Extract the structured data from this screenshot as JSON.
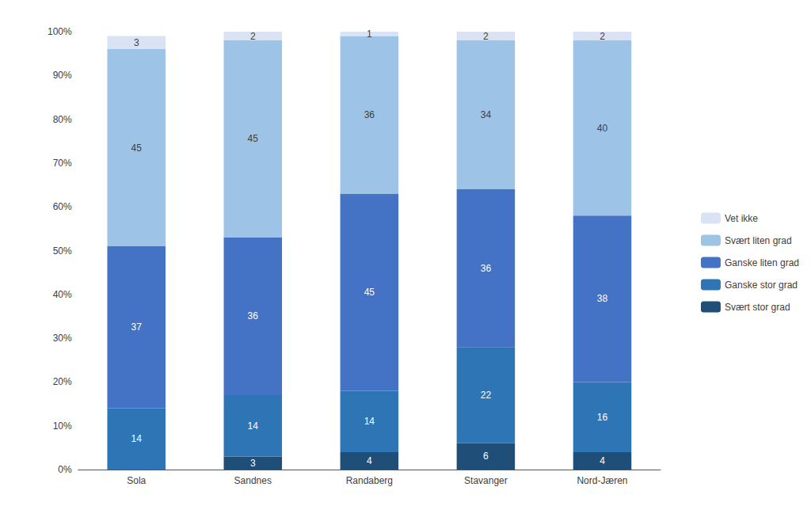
{
  "chart_data": {
    "type": "bar",
    "stacked": true,
    "data_labels": true,
    "grid": false,
    "legend": "right",
    "categories": [
      "Sola",
      "Sandnes",
      "Randaberg",
      "Stavanger",
      "Nord-Jæren"
    ],
    "series": [
      {
        "name": "Svært stor grad",
        "color": "#1F4E79",
        "values": [
          0,
          3,
          4,
          6,
          4
        ]
      },
      {
        "name": "Ganske stor grad",
        "color": "#2E75B6",
        "values": [
          14,
          14,
          14,
          22,
          16
        ]
      },
      {
        "name": "Ganske liten grad",
        "color": "#4472C4",
        "values": [
          37,
          36,
          45,
          36,
          38
        ]
      },
      {
        "name": "Svært liten grad",
        "color": "#9DC3E6",
        "values": [
          45,
          45,
          36,
          34,
          40
        ]
      },
      {
        "name": "Vet ikke",
        "color": "#DAE3F3",
        "values": [
          3,
          2,
          1,
          2,
          2
        ]
      }
    ],
    "ylim": [
      0,
      100
    ],
    "yticks": [
      {
        "value": 0,
        "label": "0%"
      },
      {
        "value": 10,
        "label": "10%"
      },
      {
        "value": 20,
        "label": "20%"
      },
      {
        "value": 30,
        "label": "30%"
      },
      {
        "value": 40,
        "label": "40%"
      },
      {
        "value": 50,
        "label": "50%"
      },
      {
        "value": 60,
        "label": "60%"
      },
      {
        "value": 70,
        "label": "70%"
      },
      {
        "value": 80,
        "label": "80%"
      },
      {
        "value": 90,
        "label": "90%"
      },
      {
        "value": 100,
        "label": "100%"
      }
    ]
  }
}
